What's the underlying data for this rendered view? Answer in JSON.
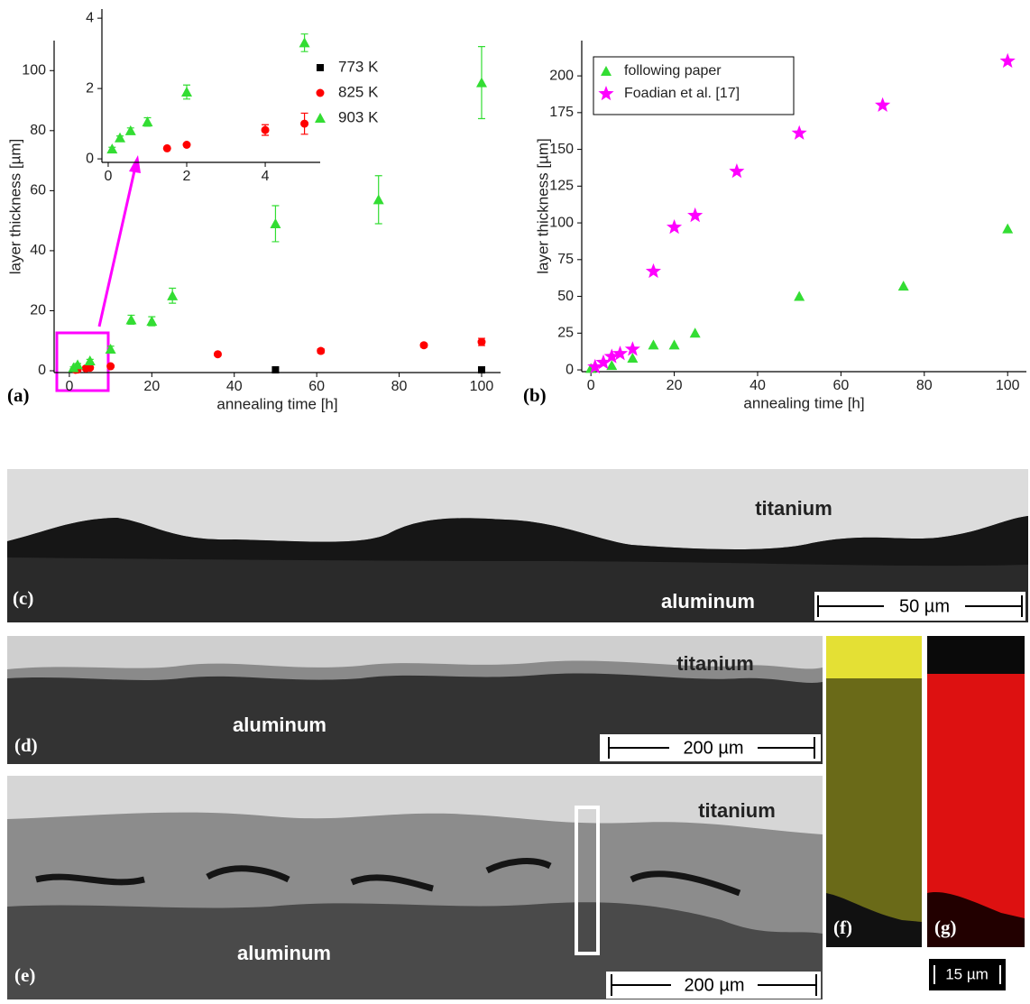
{
  "chart_data": [
    {
      "type": "scatter",
      "label": "(a)",
      "x_label": "annealing time [h]",
      "y_label": "layer thickness [µm]",
      "xlim": [
        -3.7,
        104.6
      ],
      "ylim": [
        -0.6,
        110
      ],
      "xticks": [
        0,
        20,
        40,
        60,
        80,
        100
      ],
      "yticks": [
        0,
        20,
        40,
        60,
        80,
        100
      ],
      "series": [
        {
          "name": "773 K",
          "color": "#000000",
          "marker": "square",
          "x": [
            50,
            100
          ],
          "values": [
            0.3,
            0.3
          ],
          "errors": [
            0,
            0
          ]
        },
        {
          "name": "825 K",
          "color": "#ff0000",
          "marker": "circle",
          "x": [
            1.5,
            2,
            4,
            5,
            10,
            36,
            61,
            86,
            100
          ],
          "values": [
            0.3,
            0.4,
            0.8,
            1,
            1.5,
            5.5,
            6.6,
            8.5,
            9.6
          ],
          "errors": [
            0,
            0,
            0.2,
            0.3,
            0.4,
            0.5,
            0.7,
            0.6,
            1.2
          ]
        },
        {
          "name": "903 K",
          "color": "#33dd33",
          "marker": "triangle",
          "x": [
            1,
            2,
            5,
            10,
            15,
            20,
            25,
            50,
            75,
            100
          ],
          "values": [
            1,
            2,
            3.3,
            7.2,
            17,
            16.5,
            25,
            49,
            57,
            96
          ],
          "errors": [
            0.3,
            0.4,
            0.5,
            1,
            1.5,
            1.5,
            2.5,
            6,
            8,
            12
          ]
        }
      ]
    },
    {
      "type": "scatter",
      "xlim": [
        -0.16,
        5.4
      ],
      "ylim": [
        -0.1,
        4.26
      ],
      "xticks": [
        0,
        2,
        4
      ],
      "yticks": [
        0,
        2,
        4
      ],
      "series": [
        {
          "color": "#ff0000",
          "marker": "circle",
          "x": [
            1.5,
            2,
            4,
            5
          ],
          "values": [
            0.3,
            0.4,
            0.82,
            1.0
          ],
          "errors": [
            0,
            0,
            0.15,
            0.3
          ]
        },
        {
          "color": "#33dd33",
          "marker": "triangle",
          "x": [
            0.1,
            0.3,
            0.57,
            1,
            2,
            5
          ],
          "values": [
            0.28,
            0.6,
            0.8,
            1.05,
            1.9,
            3.3
          ],
          "errors": [
            0.05,
            0.05,
            0.08,
            0.12,
            0.2,
            0.25
          ]
        }
      ]
    },
    {
      "type": "scatter",
      "label": "(b)",
      "x_label": "annealing time [h]",
      "y_label": "layer thickness [µm]",
      "xlim": [
        -2.2,
        104.5
      ],
      "ylim": [
        -1.2,
        224
      ],
      "xticks": [
        0,
        20,
        40,
        60,
        80,
        100
      ],
      "yticks": [
        0,
        25,
        50,
        75,
        100,
        125,
        150,
        175,
        200
      ],
      "series": [
        {
          "name": "following paper",
          "color": "#33dd33",
          "marker": "triangle",
          "x": [
            0,
            5,
            10,
            15,
            20,
            25,
            50,
            75,
            100
          ],
          "values": [
            1,
            3,
            8,
            17,
            17,
            25,
            50,
            57,
            96
          ]
        },
        {
          "name": "Foadian et al. [17]",
          "color": "#ff00ff",
          "marker": "star",
          "x": [
            1,
            3,
            5,
            7,
            10,
            15,
            20,
            25,
            35,
            50,
            70,
            100
          ],
          "values": [
            2,
            5,
            9,
            11,
            14,
            67,
            97,
            105,
            135,
            161,
            180,
            210
          ]
        }
      ]
    }
  ],
  "micrographs": {
    "c": {
      "label": "(c)",
      "top": "titanium",
      "bottom": "aluminum",
      "scale_bar": "50 µm"
    },
    "d": {
      "label": "(d)",
      "top": "titanium",
      "bottom": "aluminum",
      "scale_bar": "200 µm"
    },
    "e": {
      "label": "(e)",
      "top": "titanium",
      "bottom": "aluminum",
      "scale_bar": "200 µm"
    },
    "f": {
      "label": "(f)"
    },
    "g": {
      "label": "(g)",
      "scale_bar": "15 µm"
    }
  }
}
